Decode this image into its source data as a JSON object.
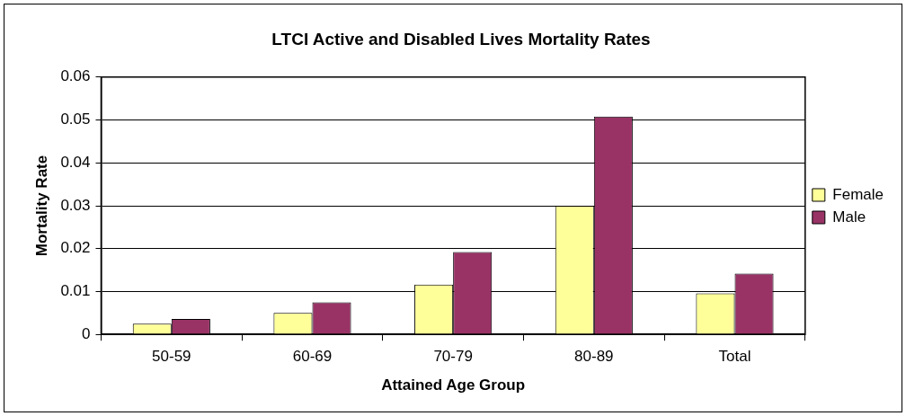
{
  "chart_data": {
    "type": "bar",
    "title": "LTCI Active and Disabled Lives Mortality Rates",
    "xlabel": "Attained Age Group",
    "ylabel": "Mortality Rate",
    "categories": [
      "50-59",
      "60-69",
      "70-79",
      "80-89",
      "Total"
    ],
    "series": [
      {
        "name": "Female",
        "color": "#ffff99",
        "values": [
          0.0025,
          0.005,
          0.0116,
          0.03,
          0.0096
        ]
      },
      {
        "name": "Male",
        "color": "#993366",
        "values": [
          0.0036,
          0.0075,
          0.0192,
          0.0508,
          0.0142
        ]
      }
    ],
    "ylim": [
      0,
      0.06
    ],
    "yticks": [
      0,
      0.01,
      0.02,
      0.03,
      0.04,
      0.05,
      0.06
    ],
    "grid": "y",
    "legend": "right"
  }
}
